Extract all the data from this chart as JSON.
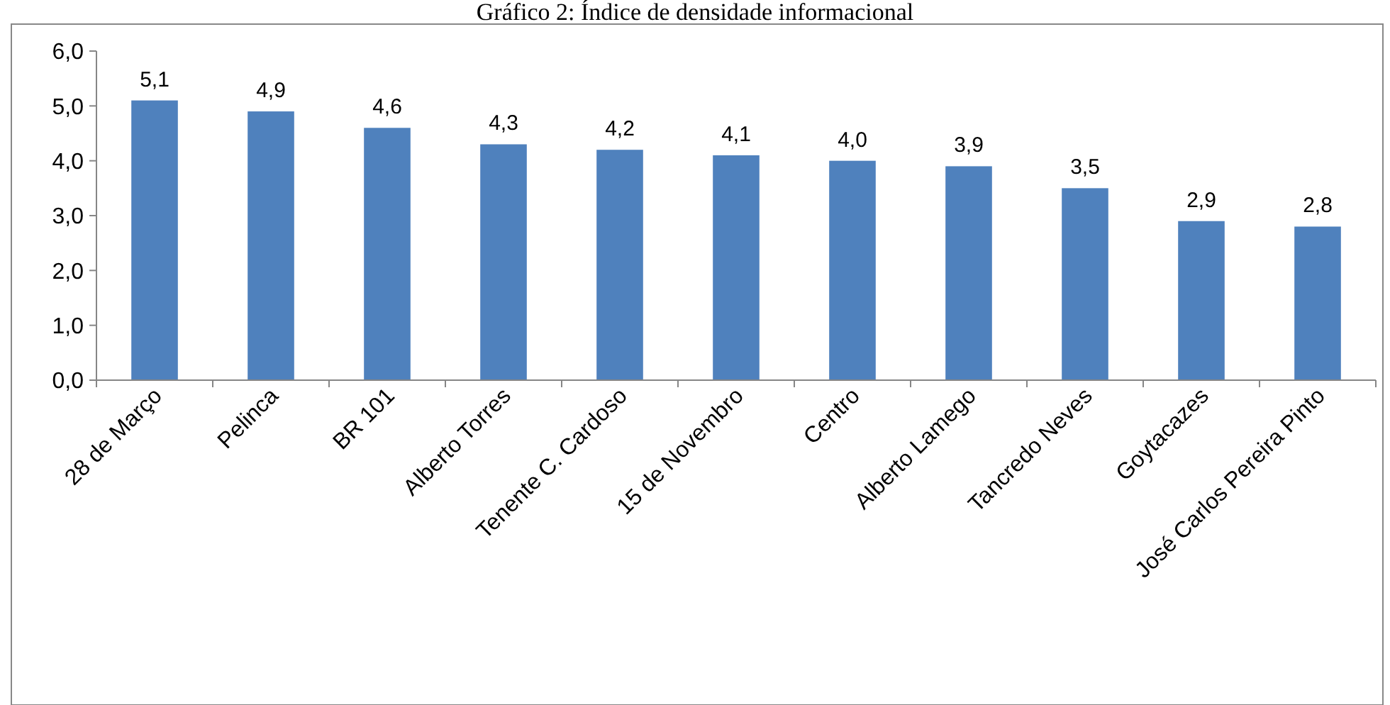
{
  "chart_data": {
    "type": "bar",
    "title": "Gráfico 2: Índice de densidade informacional",
    "categories": [
      "28 de Março",
      "Pelinca",
      "BR 101",
      "Alberto Torres",
      "Tenente C. Cardoso",
      "15 de Novembro",
      "Centro",
      "Alberto Lamego",
      "Tancredo Neves",
      "Goytacazes",
      "José Carlos Pereira Pinto"
    ],
    "values": [
      5.1,
      4.9,
      4.6,
      4.3,
      4.2,
      4.1,
      4.0,
      3.9,
      3.5,
      2.9,
      2.8
    ],
    "value_labels": [
      "5,1",
      "4,9",
      "4,6",
      "4,3",
      "4,2",
      "4,1",
      "4,0",
      "3,9",
      "3,5",
      "2,9",
      "2,8"
    ],
    "color": "#4f81bd",
    "ylim": [
      0,
      6
    ],
    "yticks": [
      {
        "value": 0,
        "label": "0,0"
      },
      {
        "value": 1,
        "label": "1,0"
      },
      {
        "value": 2,
        "label": "2,0"
      },
      {
        "value": 3,
        "label": "3,0"
      },
      {
        "value": 4,
        "label": "4,0"
      },
      {
        "value": 5,
        "label": "5,0"
      },
      {
        "value": 6,
        "label": "6,0"
      }
    ],
    "grid": false
  }
}
